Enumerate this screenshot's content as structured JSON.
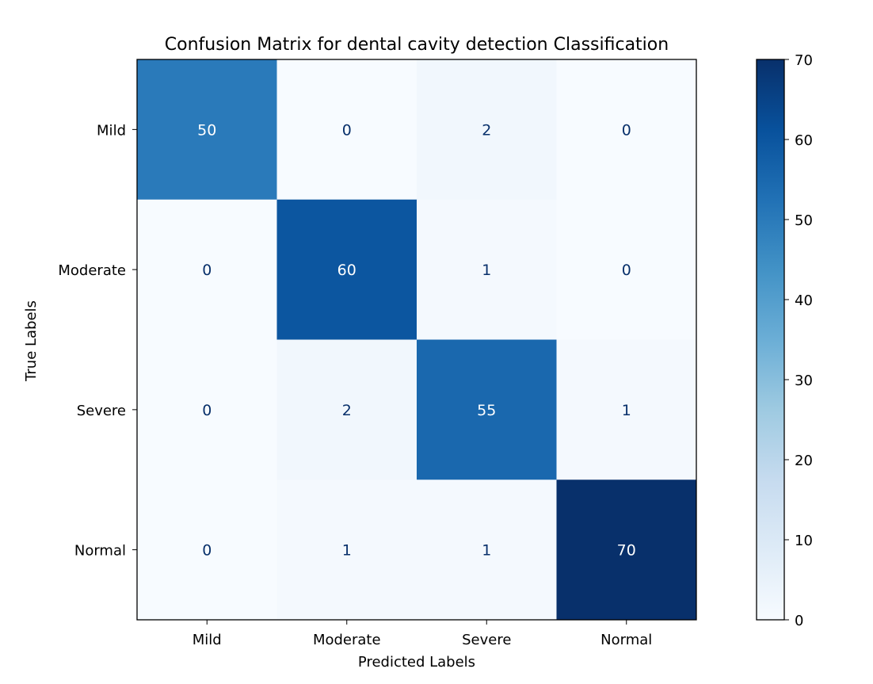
{
  "chart_data": {
    "type": "heatmap",
    "title": "Confusion Matrix for dental cavity detection Classification",
    "xlabel": "Predicted Labels",
    "ylabel": "True Labels",
    "row_labels": [
      "Mild",
      "Moderate",
      "Severe",
      "Normal"
    ],
    "col_labels": [
      "Mild",
      "Moderate",
      "Severe",
      "Normal"
    ],
    "values": [
      [
        50,
        0,
        2,
        0
      ],
      [
        0,
        60,
        1,
        0
      ],
      [
        0,
        2,
        55,
        1
      ],
      [
        0,
        1,
        1,
        70
      ]
    ],
    "colormap": "Blues",
    "vmin": 0,
    "vmax": 70,
    "colorbar_ticks": [
      "0",
      "10",
      "20",
      "30",
      "40",
      "50",
      "60",
      "70"
    ]
  }
}
